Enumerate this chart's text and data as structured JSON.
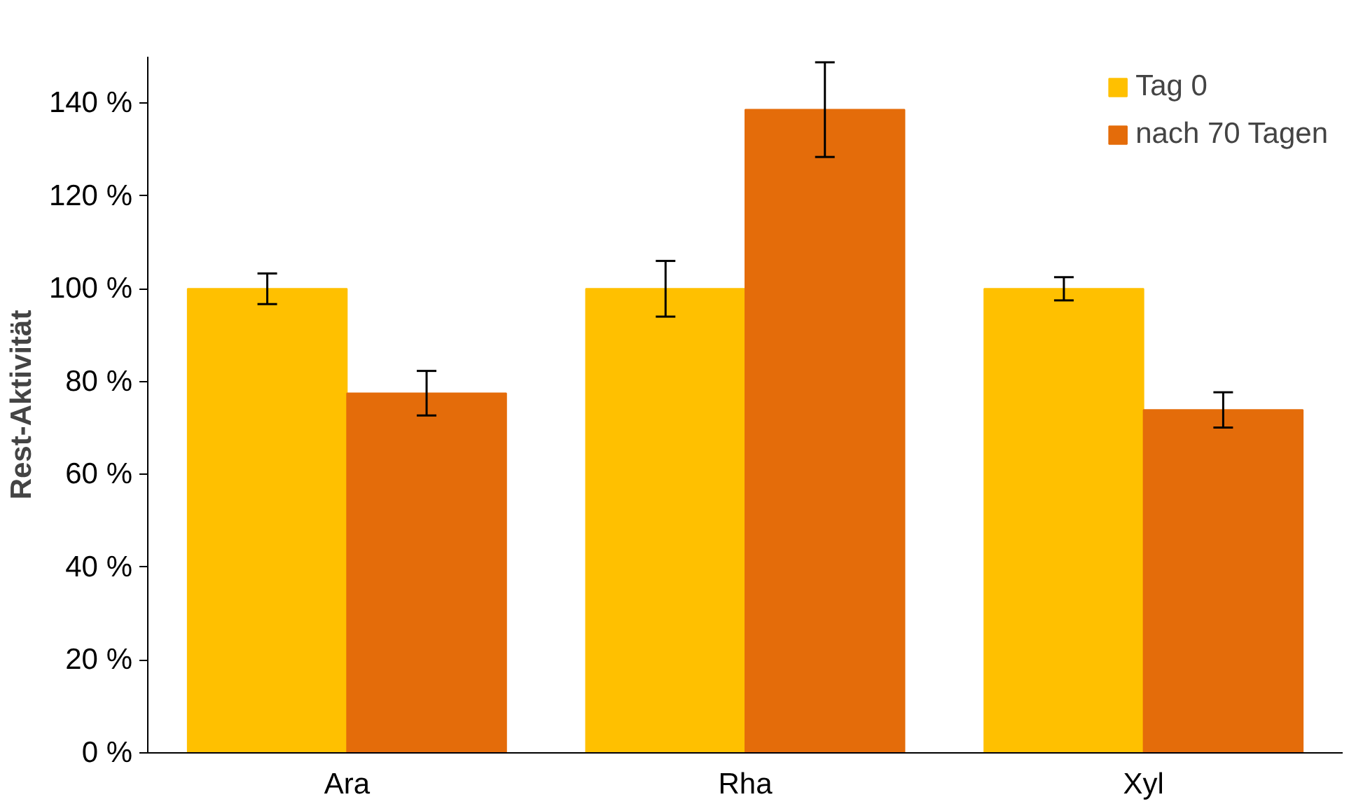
{
  "chart_data": {
    "type": "bar",
    "ylabel": "Rest-Aktivität",
    "categories": [
      "Ara",
      "Rha",
      "Xyl"
    ],
    "series": [
      {
        "name": "Tag 0",
        "color": "#ffc000",
        "values": [
          100,
          100,
          100
        ],
        "errors": [
          3.3,
          6,
          2.5
        ]
      },
      {
        "name": "nach 70 Tagen",
        "color": "#e46c0a",
        "values": [
          77.5,
          138.6,
          73.9
        ],
        "errors": [
          4.8,
          10.2,
          3.8
        ]
      }
    ],
    "ylim": [
      0,
      150
    ],
    "yticks": [
      {
        "value": 0,
        "label": "0 %"
      },
      {
        "value": 20,
        "label": "20 %"
      },
      {
        "value": 40,
        "label": "40 %"
      },
      {
        "value": 60,
        "label": "60 %"
      },
      {
        "value": 80,
        "label": "80 %"
      },
      {
        "value": 100,
        "label": "100 %"
      },
      {
        "value": 120,
        "label": "120 %"
      },
      {
        "value": 140,
        "label": "140 %"
      }
    ],
    "grid": false,
    "legend": "top right"
  }
}
